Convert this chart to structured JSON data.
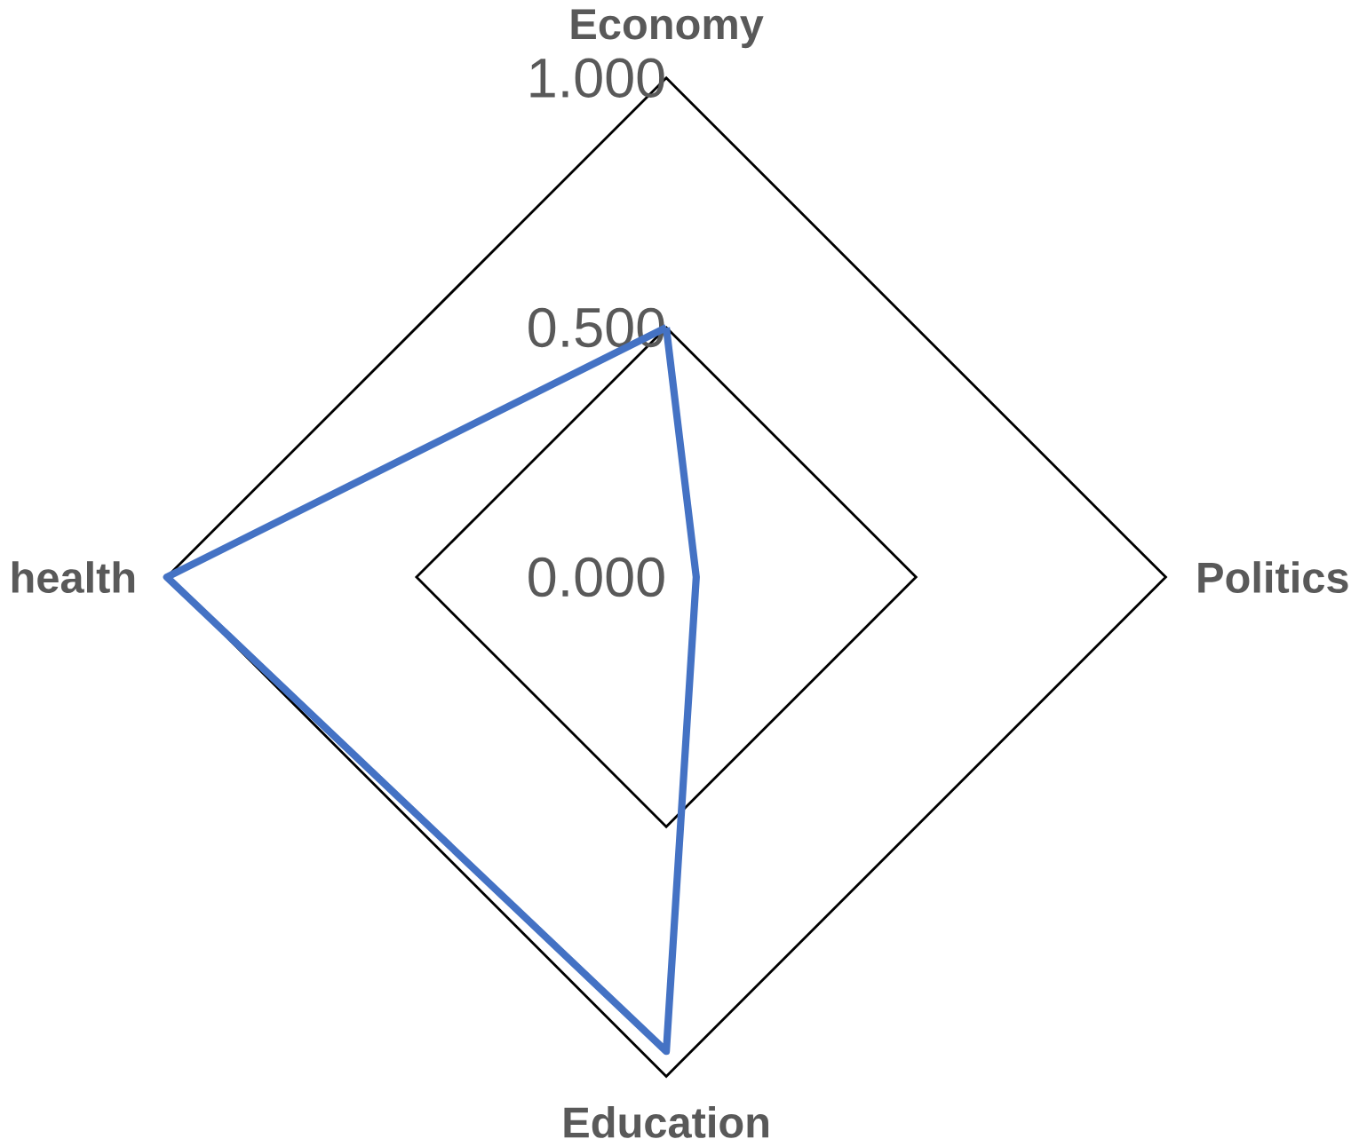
{
  "chart_data": {
    "type": "radar",
    "categories": [
      "Economy",
      "Politics",
      "Education",
      "health"
    ],
    "series": [
      {
        "color": "#4472c4",
        "values": [
          0.5,
          0.06,
          0.95,
          1.0
        ]
      }
    ],
    "ylim": [
      0,
      1
    ],
    "yticks": [
      {
        "value": 0,
        "label": "0.000"
      },
      {
        "value": 0.5,
        "label": "0.500"
      },
      {
        "value": 1,
        "label": "1.000"
      }
    ]
  }
}
